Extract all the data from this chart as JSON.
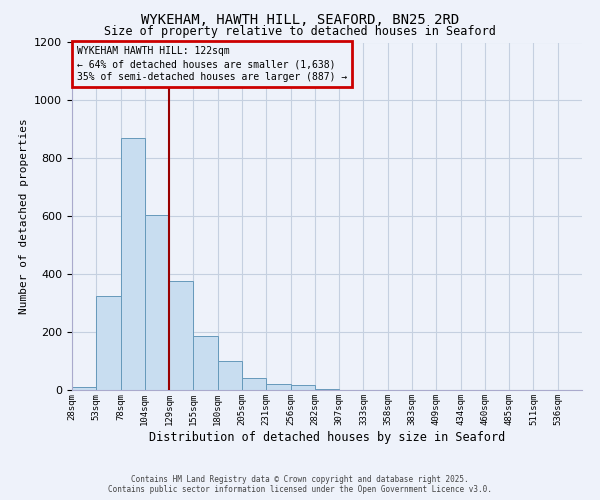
{
  "title": "WYKEHAM, HAWTH HILL, SEAFORD, BN25 2RD",
  "subtitle": "Size of property relative to detached houses in Seaford",
  "xlabel": "Distribution of detached houses by size in Seaford",
  "ylabel": "Number of detached properties",
  "bar_values": [
    10,
    325,
    870,
    605,
    375,
    185,
    100,
    42,
    22,
    18,
    5,
    0,
    0,
    0,
    0,
    0,
    0,
    0,
    0,
    0,
    0
  ],
  "bin_labels": [
    "28sqm",
    "53sqm",
    "78sqm",
    "104sqm",
    "129sqm",
    "155sqm",
    "180sqm",
    "205sqm",
    "231sqm",
    "256sqm",
    "282sqm",
    "307sqm",
    "333sqm",
    "358sqm",
    "383sqm",
    "409sqm",
    "434sqm",
    "460sqm",
    "485sqm",
    "511sqm",
    "536sqm"
  ],
  "bar_color": "#c8ddf0",
  "bar_edge_color": "#6699bb",
  "vline_color": "#990000",
  "annotation_title": "WYKEHAM HAWTH HILL: 122sqm",
  "annotation_line1": "← 64% of detached houses are smaller (1,638)",
  "annotation_line2": "35% of semi-detached houses are larger (887) →",
  "annotation_box_edgecolor": "#cc0000",
  "ylim": [
    0,
    1200
  ],
  "yticks": [
    0,
    200,
    400,
    600,
    800,
    1000,
    1200
  ],
  "footer1": "Contains HM Land Registry data © Crown copyright and database right 2025.",
  "footer2": "Contains public sector information licensed under the Open Government Licence v3.0.",
  "bg_color": "#eef2fa",
  "grid_color": "#c5d0e0"
}
